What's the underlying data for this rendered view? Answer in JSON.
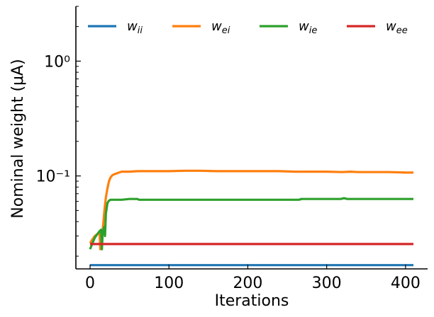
{
  "chart_data": {
    "type": "line",
    "xlabel": "Iterations",
    "ylabel": "Nominal weight (μA)",
    "xlim": [
      -18,
      428
    ],
    "ylim": [
      0.0155,
      3.0
    ],
    "yscale": "log",
    "x_ticks": [
      0,
      100,
      200,
      300,
      400
    ],
    "x_tick_labels": [
      "0",
      "100",
      "200",
      "300",
      "400"
    ],
    "y_ticks": [
      0.1,
      1
    ],
    "y_tick_labels": [
      "10⁻¹",
      "10⁰"
    ],
    "grid": false,
    "legend_position": "top",
    "series": [
      {
        "name": "w_ii",
        "legend_main": "w",
        "legend_sub": "ii",
        "color": "#1f77b4",
        "x": [
          0,
          410
        ],
        "y": [
          0.0167,
          0.0167
        ]
      },
      {
        "name": "w_ei",
        "legend_main": "w",
        "legend_sub": "ei",
        "color": "#ff7f0e",
        "x": [
          0,
          3,
          6,
          9,
          12,
          13,
          14,
          15,
          16,
          17,
          18,
          19,
          20,
          22,
          24,
          26,
          28,
          30,
          35,
          40,
          50,
          60,
          70,
          80,
          100,
          120,
          140,
          160,
          180,
          200,
          220,
          240,
          260,
          280,
          300,
          320,
          330,
          340,
          360,
          380,
          400,
          410
        ],
        "y": [
          0.026,
          0.028,
          0.03,
          0.031,
          0.032,
          0.023,
          0.031,
          0.03,
          0.034,
          0.04,
          0.048,
          0.056,
          0.065,
          0.078,
          0.09,
          0.097,
          0.101,
          0.103,
          0.106,
          0.109,
          0.109,
          0.11,
          0.11,
          0.11,
          0.11,
          0.111,
          0.111,
          0.11,
          0.11,
          0.11,
          0.11,
          0.11,
          0.109,
          0.109,
          0.109,
          0.108,
          0.109,
          0.108,
          0.108,
          0.108,
          0.107,
          0.107
        ]
      },
      {
        "name": "w_ie",
        "legend_main": "w",
        "legend_sub": "ie",
        "color": "#2ca02c",
        "x": [
          0,
          3,
          6,
          9,
          12,
          14,
          15,
          16,
          17,
          18,
          19,
          20,
          22,
          24,
          26,
          30,
          35,
          40,
          50,
          60,
          62,
          80,
          100,
          150,
          200,
          250,
          265,
          268,
          300,
          318,
          322,
          326,
          340,
          380,
          410
        ],
        "y": [
          0.023,
          0.026,
          0.029,
          0.031,
          0.033,
          0.034,
          0.023,
          0.032,
          0.034,
          0.036,
          0.03,
          0.047,
          0.058,
          0.061,
          0.062,
          0.062,
          0.062,
          0.062,
          0.063,
          0.063,
          0.062,
          0.062,
          0.062,
          0.062,
          0.062,
          0.062,
          0.062,
          0.063,
          0.063,
          0.063,
          0.064,
          0.063,
          0.063,
          0.063,
          0.063
        ]
      },
      {
        "name": "w_ee",
        "legend_main": "w",
        "legend_sub": "ee",
        "color": "#d62728",
        "x": [
          0,
          410
        ],
        "y": [
          0.0255,
          0.0255
        ]
      }
    ]
  }
}
